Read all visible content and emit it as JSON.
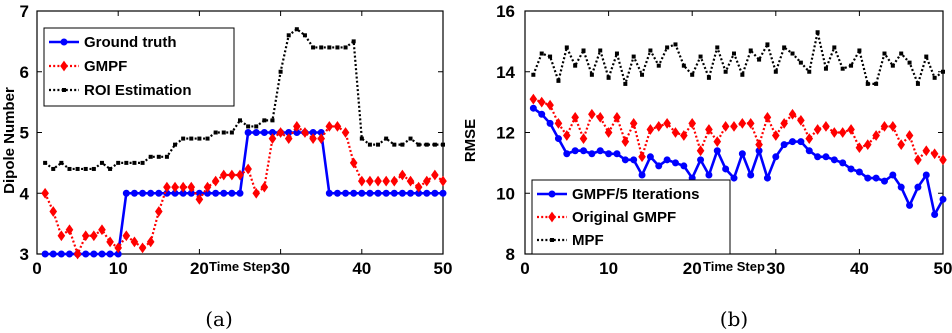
{
  "chart_data": [
    {
      "type": "line",
      "panel": "a",
      "caption": "(a)",
      "xlabel": "Time Step",
      "ylabel": "Dipole Number",
      "xlim": [
        0,
        50
      ],
      "ylim": [
        3,
        7
      ],
      "xticks": [
        0,
        10,
        20,
        30,
        40,
        50
      ],
      "yticks": [
        3,
        4,
        5,
        6,
        7
      ],
      "legend_position": "top-left",
      "grid": false,
      "x": [
        1,
        2,
        3,
        4,
        5,
        6,
        7,
        8,
        9,
        10,
        11,
        12,
        13,
        14,
        15,
        16,
        17,
        18,
        19,
        20,
        21,
        22,
        23,
        24,
        25,
        26,
        27,
        28,
        29,
        30,
        31,
        32,
        33,
        34,
        35,
        36,
        37,
        38,
        39,
        40,
        41,
        42,
        43,
        44,
        45,
        46,
        47,
        48,
        49,
        50
      ],
      "series": [
        {
          "name": "Ground truth",
          "color": "#0000ff",
          "style": "solid",
          "marker": "circle",
          "values": [
            3,
            3,
            3,
            3,
            3,
            3,
            3,
            3,
            3,
            3,
            4,
            4,
            4,
            4,
            4,
            4,
            4,
            4,
            4,
            4,
            4,
            4,
            4,
            4,
            4,
            5,
            5,
            5,
            5,
            5,
            5,
            5,
            5,
            5,
            5,
            4,
            4,
            4,
            4,
            4,
            4,
            4,
            4,
            4,
            4,
            4,
            4,
            4,
            4,
            4
          ]
        },
        {
          "name": "GMPF",
          "color": "#ff0000",
          "style": "dotted",
          "marker": "diamond",
          "values": [
            4,
            3.7,
            3.3,
            3.4,
            3,
            3.3,
            3.3,
            3.4,
            3.2,
            3.1,
            3.3,
            3.2,
            3.1,
            3.2,
            3.7,
            4.1,
            4.1,
            4.1,
            4.1,
            3.9,
            4.1,
            4.2,
            4.3,
            4.3,
            4.3,
            4.4,
            4,
            4.1,
            4.9,
            5,
            4.9,
            5.1,
            5,
            4.9,
            4.9,
            5.1,
            5.1,
            5,
            4.5,
            4.2,
            4.2,
            4.2,
            4.2,
            4.2,
            4.3,
            4.2,
            4.1,
            4.2,
            4.3,
            4.2
          ]
        },
        {
          "name": "ROI Estimation",
          "color": "#000000",
          "style": "dotted",
          "marker": "square",
          "values": [
            4.5,
            4.4,
            4.5,
            4.4,
            4.4,
            4.4,
            4.4,
            4.5,
            4.4,
            4.5,
            4.5,
            4.5,
            4.5,
            4.6,
            4.6,
            4.6,
            4.8,
            4.9,
            4.9,
            4.9,
            4.9,
            5,
            5,
            5,
            5.2,
            5.1,
            5.1,
            5.2,
            5.2,
            6,
            6.6,
            6.7,
            6.6,
            6.4,
            6.4,
            6.4,
            6.4,
            6.4,
            6.5,
            4.9,
            4.8,
            4.8,
            4.9,
            4.8,
            4.8,
            4.9,
            4.8,
            4.8,
            4.8,
            4.8
          ]
        }
      ]
    },
    {
      "type": "line",
      "panel": "b",
      "caption": "(b)",
      "xlabel": "Time Step",
      "ylabel": "RMSE",
      "xlim": [
        0,
        50
      ],
      "ylim": [
        8,
        16
      ],
      "xticks": [
        0,
        10,
        20,
        30,
        40,
        50
      ],
      "yticks": [
        8,
        10,
        12,
        14,
        16
      ],
      "legend_position": "bottom-left",
      "grid": false,
      "x": [
        1,
        2,
        3,
        4,
        5,
        6,
        7,
        8,
        9,
        10,
        11,
        12,
        13,
        14,
        15,
        16,
        17,
        18,
        19,
        20,
        21,
        22,
        23,
        24,
        25,
        26,
        27,
        28,
        29,
        30,
        31,
        32,
        33,
        34,
        35,
        36,
        37,
        38,
        39,
        40,
        41,
        42,
        43,
        44,
        45,
        46,
        47,
        48,
        49,
        50
      ],
      "series": [
        {
          "name": "GMPF/5 Iterations",
          "color": "#0000ff",
          "style": "solid",
          "marker": "circle",
          "values": [
            12.8,
            12.6,
            12.3,
            11.8,
            11.3,
            11.4,
            11.4,
            11.3,
            11.4,
            11.3,
            11.3,
            11.1,
            11.1,
            10.6,
            11.2,
            10.9,
            11.1,
            11,
            10.9,
            10.5,
            11.1,
            10.6,
            11.4,
            10.8,
            10.5,
            11.3,
            10.6,
            11.4,
            10.5,
            11.2,
            11.6,
            11.7,
            11.7,
            11.4,
            11.2,
            11.2,
            11.1,
            11,
            10.8,
            10.7,
            10.5,
            10.5,
            10.4,
            10.6,
            10.2,
            9.6,
            10.2,
            10.6,
            9.3,
            9.8
          ]
        },
        {
          "name": "Original GMPF",
          "color": "#ff0000",
          "style": "dotted",
          "marker": "diamond",
          "values": [
            13.1,
            13,
            12.9,
            12.3,
            11.9,
            12.5,
            11.8,
            12.6,
            12.5,
            12,
            12.5,
            11.7,
            12.3,
            11.2,
            12.1,
            12.2,
            12.3,
            12,
            11.9,
            12.3,
            11.4,
            12.1,
            11.7,
            12.2,
            12.2,
            12.3,
            12.3,
            11.6,
            12.5,
            11.9,
            12.3,
            12.6,
            12.4,
            11.8,
            12.1,
            12.2,
            12,
            12,
            12.1,
            11.5,
            11.6,
            11.9,
            12.2,
            12.2,
            11.6,
            11.9,
            11.1,
            11.4,
            11.3,
            11.1
          ]
        },
        {
          "name": "MPF",
          "color": "#000000",
          "style": "dotted",
          "marker": "square",
          "values": [
            13.9,
            14.6,
            14.5,
            13.7,
            14.8,
            14.2,
            14.7,
            13.9,
            14.7,
            13.8,
            14.6,
            13.6,
            14.5,
            13.9,
            14.7,
            14.2,
            14.8,
            14.9,
            14.2,
            13.9,
            14.5,
            13.8,
            14.8,
            14,
            14.6,
            13.9,
            14.7,
            14.4,
            14.9,
            14,
            14.8,
            14.6,
            14.3,
            14,
            15.3,
            14.1,
            14.8,
            14.1,
            14.2,
            14.7,
            13.6,
            13.6,
            14.6,
            14.2,
            14.6,
            14.3,
            13.6,
            14.5,
            13.8,
            14
          ]
        }
      ]
    }
  ]
}
